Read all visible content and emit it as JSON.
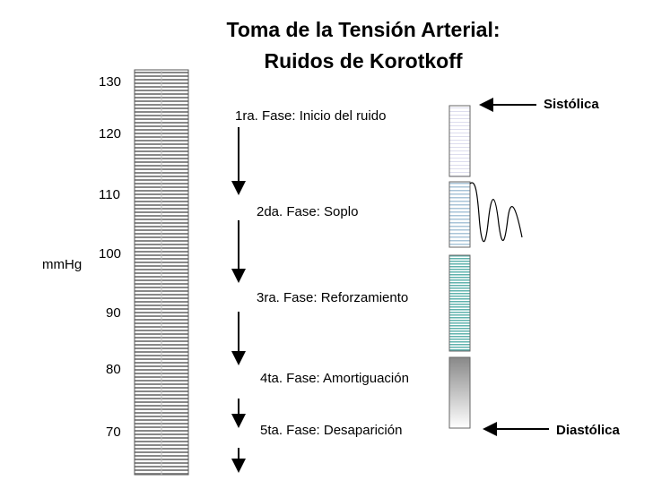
{
  "header": {
    "title_line_1": "Toma de la Tensión Arterial:",
    "title_line_2": "Ruidos de Korotkoff"
  },
  "scale": {
    "unit": "mmHg",
    "labels": [
      "130",
      "120",
      "110",
      "100",
      "90",
      "80",
      "70"
    ]
  },
  "phases": [
    "1ra. Fase: Inicio del ruido",
    "2da. Fase: Soplo",
    "3ra. Fase: Reforzamiento",
    "4ta. Fase: Amortiguación",
    "5ta. Fase: Desaparición"
  ],
  "markers": {
    "systolic": "Sistólica",
    "diastolic": "Diastólica"
  }
}
